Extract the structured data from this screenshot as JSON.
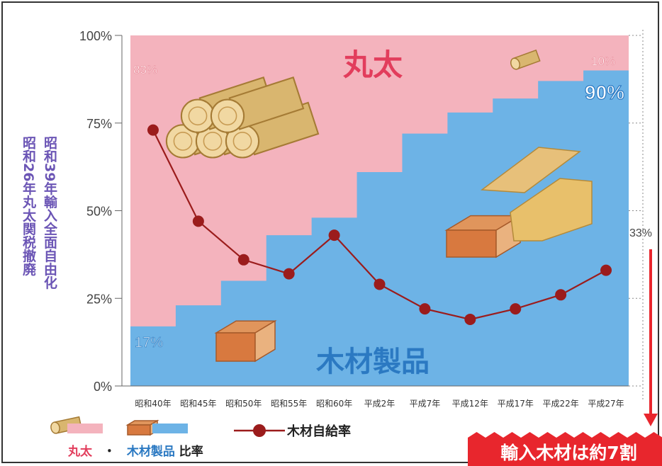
{
  "chart_data": {
    "type": "area",
    "categories": [
      "昭和40年",
      "昭和45年",
      "昭和50年",
      "昭和55年",
      "昭和60年",
      "平成2年",
      "平成7年",
      "平成12年",
      "平成17年",
      "平成22年",
      "平成27年"
    ],
    "ylim": [
      0,
      100
    ],
    "yticks": [
      "0%",
      "25%",
      "50%",
      "75%",
      "100%"
    ],
    "series": [
      {
        "name": "木材製品",
        "type": "step-area",
        "color": "#6db3e6",
        "values": [
          17,
          23,
          30,
          43,
          48,
          61,
          72,
          78,
          82,
          87,
          90
        ]
      },
      {
        "name": "丸太",
        "type": "step-area",
        "color": "#f4b3bd",
        "values": [
          83,
          77,
          70,
          57,
          52,
          39,
          28,
          22,
          18,
          13,
          10
        ]
      },
      {
        "name": "木材自給率",
        "type": "line",
        "color": "#9b1c1c",
        "values": [
          73,
          47,
          36,
          32,
          43,
          29,
          22,
          19,
          22,
          26,
          33
        ]
      }
    ],
    "annotations": {
      "start_pink": "83%",
      "start_blue": "17%",
      "end_pink": "10%",
      "end_blue": "90%",
      "end_line": "33%",
      "pink_area_label": "丸太",
      "blue_area_label": "木材製品"
    }
  },
  "left_notes": {
    "note1": "昭和39年輸入全面自由化",
    "note2": "昭和26年丸太関税撤廃"
  },
  "legend": {
    "line_label": "木材自給率",
    "maruta": "丸太",
    "dot": "・",
    "mokuzai": "木材製品",
    "ratio": "比率"
  },
  "banner": "輸入木材は約7割",
  "colors": {
    "pink": "#f4b3bd",
    "blue": "#6db3e6",
    "line": "#9b1c1c",
    "pink_text": "#e23d5c",
    "blue_text": "#2b79c2",
    "banner": "#e8262d",
    "note_text": "#6b55b5"
  }
}
